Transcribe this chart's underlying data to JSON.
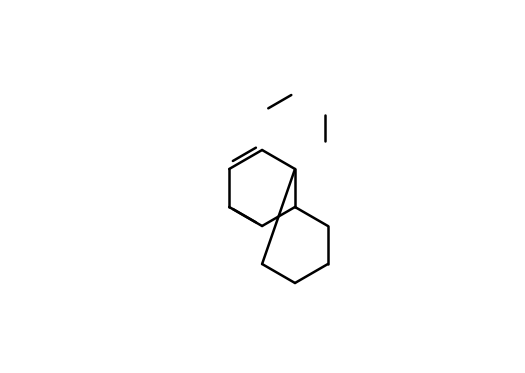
{
  "bg_color": "#ffffff",
  "line_color": "#000000",
  "line_width": 1.8,
  "figsize": [
    5.25,
    3.73
  ],
  "dpi": 100
}
